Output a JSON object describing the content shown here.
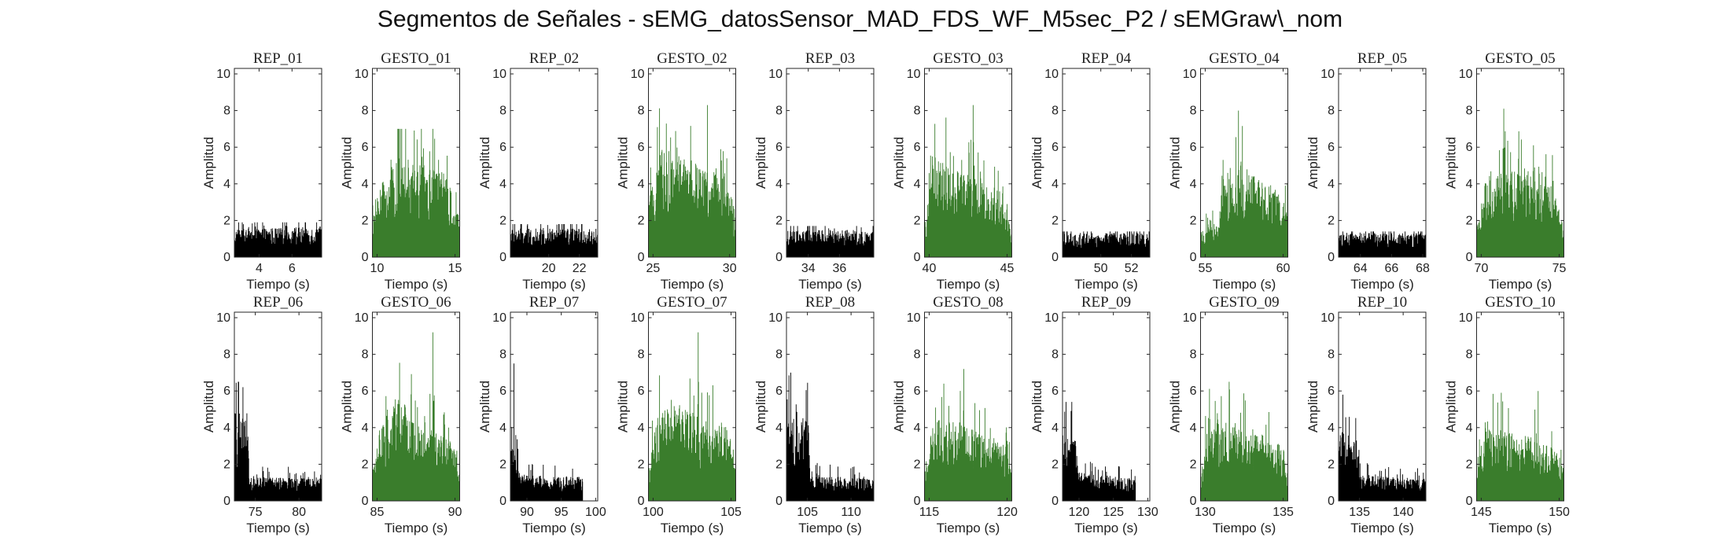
{
  "figure": {
    "title": "Segmentos de Señales - sEMG_datosSensor_MAD_FDS_WF_M5sec_P2 / sEMGraw\\_nom",
    "colors": {
      "rep": "#000000",
      "gesto": "#3a7d2c",
      "axis": "#262626"
    }
  },
  "chart_data": [
    {
      "type": "area",
      "title": "REP_01",
      "kind": "rep",
      "xlim": [
        2.5,
        7.8
      ],
      "xticks": [
        4,
        6
      ],
      "ylim": [
        0,
        10.3
      ],
      "yticks": [
        0,
        2,
        4,
        6,
        8,
        10
      ],
      "xlabel": "Tiempo (s)",
      "ylabel": "Amplitud",
      "x_start": 2.5,
      "x_end": 7.8,
      "data_end": 7.8,
      "profile": [
        [
          0,
          1.3
        ],
        [
          1,
          1.4
        ]
      ],
      "peak": 1.9
    },
    {
      "type": "area",
      "title": "GESTO_01",
      "kind": "gesto",
      "xlim": [
        9.7,
        15.3
      ],
      "xticks": [
        10,
        15
      ],
      "ylim": [
        0,
        10.3
      ],
      "yticks": [
        0,
        2,
        4,
        6,
        8,
        10
      ],
      "xlabel": "Tiempo (s)",
      "ylabel": "Amplitud",
      "x_start": 9.7,
      "x_end": 15.3,
      "data_end": 15.3,
      "profile": [
        [
          0,
          1.6
        ],
        [
          0.1,
          3.5
        ],
        [
          0.3,
          4.5
        ],
        [
          0.6,
          4.2
        ],
        [
          0.85,
          3.8
        ],
        [
          1,
          1.7
        ]
      ],
      "peak": 7.0
    },
    {
      "type": "area",
      "title": "REP_02",
      "kind": "rep",
      "xlim": [
        17.5,
        23.2
      ],
      "xticks": [
        20,
        22
      ],
      "ylim": [
        0,
        10.3
      ],
      "yticks": [
        0,
        2,
        4,
        6,
        8,
        10
      ],
      "xlabel": "Tiempo (s)",
      "ylabel": "Amplitud",
      "x_start": 17.5,
      "x_end": 23.2,
      "data_end": 23.2,
      "profile": [
        [
          0,
          1.3
        ],
        [
          1,
          1.3
        ]
      ],
      "peak": 1.8
    },
    {
      "type": "area",
      "title": "GESTO_02",
      "kind": "gesto",
      "xlim": [
        24.7,
        30.4
      ],
      "xticks": [
        25,
        30
      ],
      "ylim": [
        0,
        10.3
      ],
      "yticks": [
        0,
        2,
        4,
        6,
        8,
        10
      ],
      "xlabel": "Tiempo (s)",
      "ylabel": "Amplitud",
      "x_start": 24.7,
      "x_end": 30.4,
      "data_end": 30.4,
      "profile": [
        [
          0,
          2.5
        ],
        [
          0.15,
          5.0
        ],
        [
          0.4,
          4.5
        ],
        [
          0.7,
          4.0
        ],
        [
          0.9,
          3.5
        ],
        [
          1,
          2.2
        ]
      ],
      "peak": 8.3
    },
    {
      "type": "area",
      "title": "REP_03",
      "kind": "rep",
      "xlim": [
        32.6,
        38.2
      ],
      "xticks": [
        34,
        36
      ],
      "ylim": [
        0,
        10.3
      ],
      "yticks": [
        0,
        2,
        4,
        6,
        8,
        10
      ],
      "xlabel": "Tiempo (s)",
      "ylabel": "Amplitud",
      "x_start": 32.6,
      "x_end": 38.2,
      "data_end": 38.2,
      "profile": [
        [
          0,
          1.2
        ],
        [
          1,
          1.3
        ]
      ],
      "peak": 1.7
    },
    {
      "type": "area",
      "title": "GESTO_03",
      "kind": "gesto",
      "xlim": [
        39.7,
        45.3
      ],
      "xticks": [
        40,
        45
      ],
      "ylim": [
        0,
        10.3
      ],
      "yticks": [
        0,
        2,
        4,
        6,
        8,
        10
      ],
      "xlabel": "Tiempo (s)",
      "ylabel": "Amplitud",
      "x_start": 39.7,
      "x_end": 45.3,
      "data_end": 45.3,
      "profile": [
        [
          0,
          1.5
        ],
        [
          0.1,
          4.5
        ],
        [
          0.3,
          4.2
        ],
        [
          0.6,
          3.5
        ],
        [
          0.9,
          3.0
        ],
        [
          1,
          1.3
        ]
      ],
      "peak": 8.3
    },
    {
      "type": "area",
      "title": "REP_04",
      "kind": "rep",
      "xlim": [
        47.5,
        53.2
      ],
      "xticks": [
        50,
        52
      ],
      "ylim": [
        0,
        10.3
      ],
      "yticks": [
        0,
        2,
        4,
        6,
        8,
        10
      ],
      "xlabel": "Tiempo (s)",
      "ylabel": "Amplitud",
      "x_start": 47.5,
      "x_end": 53.2,
      "data_end": 53.2,
      "profile": [
        [
          0,
          1.1
        ],
        [
          1,
          1.1
        ]
      ],
      "peak": 1.4
    },
    {
      "type": "area",
      "title": "GESTO_04",
      "kind": "gesto",
      "xlim": [
        54.7,
        60.3
      ],
      "xticks": [
        55,
        60
      ],
      "ylim": [
        0,
        10.3
      ],
      "yticks": [
        0,
        2,
        4,
        6,
        8,
        10
      ],
      "xlabel": "Tiempo (s)",
      "ylabel": "Amplitud",
      "x_start": 54.7,
      "x_end": 60.3,
      "data_end": 60.3,
      "profile": [
        [
          0,
          1.2
        ],
        [
          0.2,
          1.6
        ],
        [
          0.3,
          4.0
        ],
        [
          0.5,
          4.5
        ],
        [
          0.75,
          3.5
        ],
        [
          1,
          2.5
        ]
      ],
      "peak": 8.0
    },
    {
      "type": "area",
      "title": "REP_05",
      "kind": "rep",
      "xlim": [
        62.6,
        68.2
      ],
      "xticks": [
        64,
        66,
        68
      ],
      "ylim": [
        0,
        10.3
      ],
      "yticks": [
        0,
        2,
        4,
        6,
        8,
        10
      ],
      "xlabel": "Tiempo (s)",
      "ylabel": "Amplitud",
      "x_start": 62.6,
      "x_end": 68.2,
      "data_end": 68.2,
      "profile": [
        [
          0,
          1.1
        ],
        [
          1,
          1.1
        ]
      ],
      "peak": 1.4
    },
    {
      "type": "area",
      "title": "GESTO_05",
      "kind": "gesto",
      "xlim": [
        69.7,
        75.3
      ],
      "xticks": [
        70,
        75
      ],
      "ylim": [
        0,
        10.3
      ],
      "yticks": [
        0,
        2,
        4,
        6,
        8,
        10
      ],
      "xlabel": "Tiempo (s)",
      "ylabel": "Amplitud",
      "x_start": 69.7,
      "x_end": 75.3,
      "data_end": 75.3,
      "profile": [
        [
          0,
          1.3
        ],
        [
          0.1,
          3.5
        ],
        [
          0.4,
          4.0
        ],
        [
          0.7,
          4.2
        ],
        [
          0.9,
          3.0
        ],
        [
          1,
          1.2
        ]
      ],
      "peak": 8.1
    },
    {
      "type": "area",
      "title": "REP_06",
      "kind": "rep",
      "xlim": [
        72.6,
        82.6
      ],
      "xticks": [
        75,
        80
      ],
      "ylim": [
        0,
        10.3
      ],
      "yticks": [
        0,
        2,
        4,
        6,
        8,
        10
      ],
      "xlabel": "Tiempo (s)",
      "ylabel": "Amplitud",
      "x_start": 72.6,
      "x_end": 82.6,
      "data_end": 82.6,
      "profile": [
        [
          0,
          4.0
        ],
        [
          0.15,
          4.0
        ],
        [
          0.17,
          1.1
        ],
        [
          1,
          1.0
        ]
      ],
      "peak": 6.5
    },
    {
      "type": "area",
      "title": "GESTO_06",
      "kind": "gesto",
      "xlim": [
        84.7,
        90.3
      ],
      "xticks": [
        85,
        90
      ],
      "ylim": [
        0,
        10.3
      ],
      "yticks": [
        0,
        2,
        4,
        6,
        8,
        10
      ],
      "xlabel": "Tiempo (s)",
      "ylabel": "Amplitud",
      "x_start": 84.7,
      "x_end": 90.3,
      "data_end": 90.3,
      "profile": [
        [
          0,
          1.3
        ],
        [
          0.1,
          3.5
        ],
        [
          0.3,
          5.0
        ],
        [
          0.5,
          3.5
        ],
        [
          0.9,
          3.2
        ],
        [
          1,
          1.3
        ]
      ],
      "peak": 9.2
    },
    {
      "type": "area",
      "title": "REP_07",
      "kind": "rep",
      "xlim": [
        87.6,
        100.3
      ],
      "xticks": [
        90,
        95,
        100
      ],
      "ylim": [
        0,
        10.3
      ],
      "yticks": [
        0,
        2,
        4,
        6,
        8,
        10
      ],
      "xlabel": "Tiempo (s)",
      "ylabel": "Amplitud",
      "x_start": 87.6,
      "x_end": 100.3,
      "data_end": 98.1,
      "profile": [
        [
          0,
          3.5
        ],
        [
          0.1,
          2.8
        ],
        [
          0.14,
          1.2
        ],
        [
          1,
          1.1
        ]
      ],
      "peak": 7.5
    },
    {
      "type": "area",
      "title": "GESTO_07",
      "kind": "gesto",
      "xlim": [
        99.7,
        105.3
      ],
      "xticks": [
        100,
        105
      ],
      "ylim": [
        0,
        10.3
      ],
      "yticks": [
        0,
        2,
        4,
        6,
        8,
        10
      ],
      "xlabel": "Tiempo (s)",
      "ylabel": "Amplitud",
      "x_start": 99.7,
      "x_end": 105.3,
      "data_end": 105.3,
      "profile": [
        [
          0,
          1.3
        ],
        [
          0.1,
          4.0
        ],
        [
          0.3,
          4.5
        ],
        [
          0.6,
          3.8
        ],
        [
          0.9,
          3.5
        ],
        [
          1,
          1.3
        ]
      ],
      "peak": 9.2
    },
    {
      "type": "area",
      "title": "REP_08",
      "kind": "rep",
      "xlim": [
        102.6,
        112.6
      ],
      "xticks": [
        105,
        110
      ],
      "ylim": [
        0,
        10.3
      ],
      "yticks": [
        0,
        2,
        4,
        6,
        8,
        10
      ],
      "xlabel": "Tiempo (s)",
      "ylabel": "Amplitud",
      "x_start": 102.6,
      "x_end": 112.6,
      "data_end": 112.6,
      "profile": [
        [
          0,
          4.0
        ],
        [
          0.25,
          3.8
        ],
        [
          0.27,
          1.2
        ],
        [
          1,
          1.0
        ]
      ],
      "peak": 7.0
    },
    {
      "type": "area",
      "title": "GESTO_08",
      "kind": "gesto",
      "xlim": [
        114.7,
        120.3
      ],
      "xticks": [
        115,
        120
      ],
      "ylim": [
        0,
        10.3
      ],
      "yticks": [
        0,
        2,
        4,
        6,
        8,
        10
      ],
      "xlabel": "Tiempo (s)",
      "ylabel": "Amplitud",
      "x_start": 114.7,
      "x_end": 120.3,
      "data_end": 120.3,
      "profile": [
        [
          0,
          1.2
        ],
        [
          0.15,
          3.8
        ],
        [
          0.4,
          3.5
        ],
        [
          0.7,
          3.0
        ],
        [
          0.95,
          2.8
        ],
        [
          1,
          1.2
        ]
      ],
      "peak": 7.2
    },
    {
      "type": "area",
      "title": "REP_09",
      "kind": "rep",
      "xlim": [
        117.6,
        130.3
      ],
      "xticks": [
        120,
        125,
        130
      ],
      "ylim": [
        0,
        10.3
      ],
      "yticks": [
        0,
        2,
        4,
        6,
        8,
        10
      ],
      "xlabel": "Tiempo (s)",
      "ylabel": "Amplitud",
      "x_start": 117.6,
      "x_end": 130.3,
      "data_end": 128.2,
      "profile": [
        [
          0,
          3.0
        ],
        [
          0.18,
          3.2
        ],
        [
          0.22,
          1.3
        ],
        [
          1,
          1.0
        ]
      ],
      "peak": 5.4
    },
    {
      "type": "area",
      "title": "GESTO_09",
      "kind": "gesto",
      "xlim": [
        129.7,
        135.3
      ],
      "xticks": [
        130,
        135
      ],
      "ylim": [
        0,
        10.3
      ],
      "yticks": [
        0,
        2,
        4,
        6,
        8,
        10
      ],
      "xlabel": "Tiempo (s)",
      "ylabel": "Amplitud",
      "x_start": 129.7,
      "x_end": 135.3,
      "data_end": 135.3,
      "profile": [
        [
          0,
          1.2
        ],
        [
          0.1,
          3.8
        ],
        [
          0.4,
          3.5
        ],
        [
          0.7,
          3.0
        ],
        [
          0.95,
          2.5
        ],
        [
          1,
          1.2
        ]
      ],
      "peak": 6.5
    },
    {
      "type": "area",
      "title": "REP_10",
      "kind": "rep",
      "xlim": [
        132.6,
        142.6
      ],
      "xticks": [
        135,
        140
      ],
      "ylim": [
        0,
        10.3
      ],
      "yticks": [
        0,
        2,
        4,
        6,
        8,
        10
      ],
      "xlabel": "Tiempo (s)",
      "ylabel": "Amplitud",
      "x_start": 132.6,
      "x_end": 142.6,
      "data_end": 142.6,
      "profile": [
        [
          0,
          3.2
        ],
        [
          0.2,
          3.0
        ],
        [
          0.25,
          1.2
        ],
        [
          1,
          1.0
        ]
      ],
      "peak": 5.8
    },
    {
      "type": "area",
      "title": "GESTO_10",
      "kind": "gesto",
      "xlim": [
        144.7,
        150.3
      ],
      "xticks": [
        145,
        150
      ],
      "ylim": [
        0,
        10.3
      ],
      "yticks": [
        0,
        2,
        4,
        6,
        8,
        10
      ],
      "xlabel": "Tiempo (s)",
      "ylabel": "Amplitud",
      "x_start": 144.7,
      "x_end": 150.3,
      "data_end": 150.3,
      "profile": [
        [
          0,
          1.2
        ],
        [
          0.1,
          3.5
        ],
        [
          0.35,
          3.2
        ],
        [
          0.7,
          2.8
        ],
        [
          0.95,
          2.2
        ],
        [
          1,
          1.2
        ]
      ],
      "peak": 6.0
    }
  ]
}
